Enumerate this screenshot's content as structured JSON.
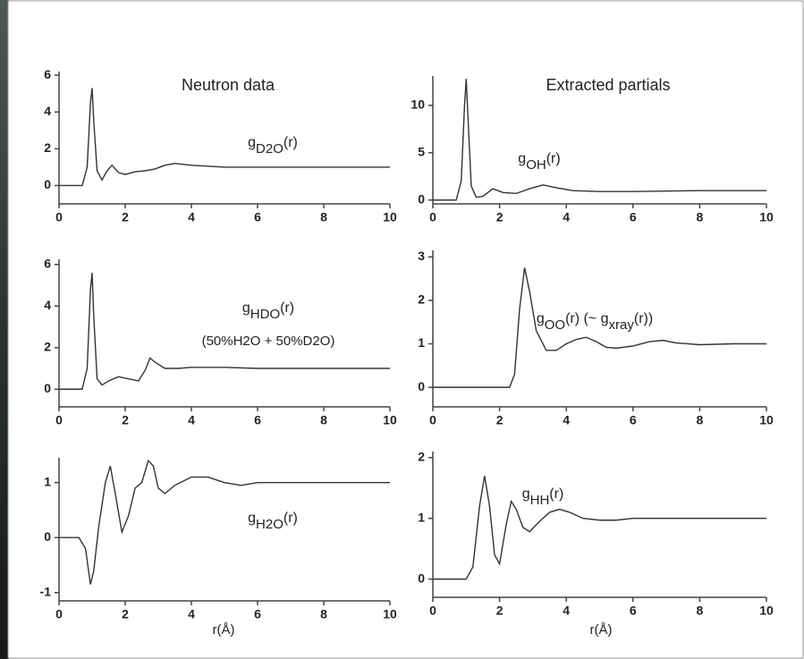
{
  "chart_data": [
    {
      "type": "line",
      "title": "Neutron data",
      "annotation": [
        "g",
        "D2O",
        "(r)"
      ],
      "x": [
        0,
        0.7,
        0.85,
        0.95,
        1.0,
        1.05,
        1.15,
        1.3,
        1.45,
        1.6,
        1.8,
        2.0,
        2.3,
        2.6,
        2.9,
        3.2,
        3.5,
        4,
        5,
        6,
        7,
        8,
        9,
        10
      ],
      "values": [
        0,
        0,
        1,
        4.5,
        5.3,
        3.5,
        0.8,
        0.3,
        0.8,
        1.1,
        0.7,
        0.6,
        0.75,
        0.8,
        0.9,
        1.1,
        1.2,
        1.1,
        1.0,
        1.0,
        1.0,
        1.0,
        1.0,
        1.0
      ],
      "color": "#333333",
      "xlim": [
        0,
        10
      ],
      "xticks": [
        0,
        2,
        4,
        6,
        8,
        10
      ],
      "ylim": [
        -1,
        6.2
      ],
      "yticks": [
        0,
        2,
        4,
        6
      ]
    },
    {
      "type": "line",
      "annotation": [
        "g",
        "HDO",
        "(r)"
      ],
      "note": "(50%H2O + 50%D2O)",
      "x": [
        0,
        0.7,
        0.85,
        0.95,
        1.0,
        1.05,
        1.15,
        1.3,
        1.5,
        1.8,
        2.1,
        2.4,
        2.6,
        2.75,
        2.9,
        3.2,
        3.6,
        4,
        5,
        6,
        7,
        8,
        9,
        10
      ],
      "values": [
        0,
        0,
        1,
        4.8,
        5.6,
        3.5,
        0.5,
        0.2,
        0.4,
        0.6,
        0.5,
        0.4,
        0.9,
        1.5,
        1.3,
        1.0,
        1.0,
        1.05,
        1.05,
        1.0,
        1.0,
        1.0,
        1.0,
        1.0
      ],
      "color": "#333333",
      "xlim": [
        0,
        10
      ],
      "xticks": [
        0,
        2,
        4,
        6,
        8,
        10
      ],
      "ylim": [
        -0.85,
        6.25
      ],
      "yticks": [
        0,
        2,
        4,
        6
      ]
    },
    {
      "type": "line",
      "annotation": [
        "g",
        "H2O",
        "(r)"
      ],
      "xlabel": "r(Å)",
      "x": [
        0,
        0.6,
        0.8,
        0.95,
        1.05,
        1.2,
        1.4,
        1.55,
        1.7,
        1.9,
        2.1,
        2.3,
        2.5,
        2.7,
        2.85,
        3.0,
        3.2,
        3.5,
        4,
        4.5,
        5,
        5.5,
        6,
        7,
        8,
        9,
        10
      ],
      "values": [
        0,
        0,
        -0.2,
        -0.85,
        -0.6,
        0.2,
        1.0,
        1.3,
        0.8,
        0.1,
        0.4,
        0.9,
        1.0,
        1.4,
        1.3,
        0.9,
        0.8,
        0.95,
        1.1,
        1.1,
        1.0,
        0.95,
        1.0,
        1.0,
        1.0,
        1.0,
        1.0
      ],
      "color": "#333333",
      "xlim": [
        0,
        10
      ],
      "xticks": [
        0,
        2,
        4,
        6,
        8,
        10
      ],
      "ylim": [
        -1.15,
        1.45
      ],
      "yticks": [
        -1,
        0,
        1
      ]
    },
    {
      "type": "line",
      "title": "Extracted partials",
      "annotation": [
        "g",
        "OH",
        "(r)"
      ],
      "x": [
        0,
        0.7,
        0.85,
        0.95,
        1.0,
        1.05,
        1.15,
        1.3,
        1.5,
        1.8,
        2.1,
        2.5,
        2.9,
        3.3,
        3.7,
        4.2,
        5,
        6,
        7,
        8,
        9,
        10
      ],
      "values": [
        0,
        0,
        2,
        10,
        12.8,
        9,
        1.5,
        0.3,
        0.4,
        1.2,
        0.8,
        0.7,
        1.2,
        1.6,
        1.3,
        1.0,
        0.9,
        0.9,
        0.95,
        1.0,
        1.0,
        1.0
      ],
      "color": "#333333",
      "xlim": [
        0,
        10
      ],
      "xticks": [
        0,
        2,
        4,
        6,
        8,
        10
      ],
      "ylim": [
        -0.4,
        13.1
      ],
      "yticks": [
        0,
        5,
        10
      ]
    },
    {
      "type": "line",
      "annotation": [
        "g",
        "OO",
        "(r) (~ g",
        "xray",
        "(r))"
      ],
      "x": [
        0,
        2.3,
        2.45,
        2.6,
        2.75,
        2.9,
        3.1,
        3.4,
        3.7,
        4,
        4.3,
        4.6,
        4.9,
        5.2,
        5.5,
        6,
        6.5,
        6.9,
        7.3,
        8,
        9,
        10
      ],
      "values": [
        0,
        0,
        0.3,
        1.8,
        2.75,
        2.2,
        1.3,
        0.85,
        0.85,
        1.0,
        1.1,
        1.15,
        1.05,
        0.92,
        0.9,
        0.95,
        1.05,
        1.08,
        1.02,
        0.98,
        1.0,
        1.0
      ],
      "color": "#333333",
      "xlim": [
        0,
        10
      ],
      "xticks": [
        0,
        2,
        4,
        6,
        8,
        10
      ],
      "ylim": [
        -0.45,
        3.15
      ],
      "yticks": [
        0,
        1,
        2,
        3
      ]
    },
    {
      "type": "line",
      "annotation": [
        "g",
        "HH",
        "(r)"
      ],
      "xlabel": "r(Å)",
      "x": [
        0,
        1.0,
        1.2,
        1.4,
        1.55,
        1.7,
        1.85,
        2.0,
        2.2,
        2.35,
        2.5,
        2.7,
        2.9,
        3.2,
        3.5,
        3.8,
        4.1,
        4.5,
        5,
        5.5,
        6,
        7,
        8,
        9,
        10
      ],
      "values": [
        0,
        0,
        0.2,
        1.2,
        1.7,
        1.2,
        0.4,
        0.25,
        0.9,
        1.28,
        1.15,
        0.85,
        0.78,
        0.95,
        1.1,
        1.15,
        1.1,
        1.0,
        0.97,
        0.97,
        1.0,
        1.0,
        1.0,
        1.0,
        1.0
      ],
      "color": "#333333",
      "xlim": [
        0,
        10
      ],
      "xticks": [
        0,
        2,
        4,
        6,
        8,
        10
      ],
      "ylim": [
        -0.3,
        2.1
      ],
      "yticks": [
        0,
        1,
        2
      ]
    }
  ]
}
